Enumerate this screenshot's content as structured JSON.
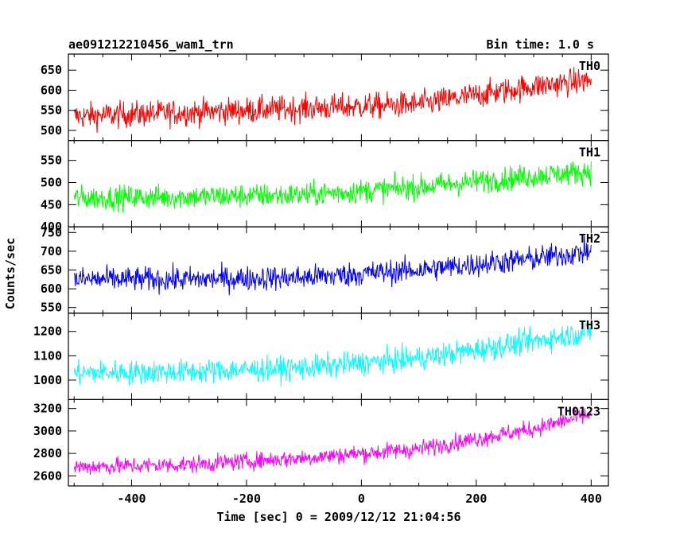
{
  "header": {
    "left_title": "ae091212210456_wam1_trn",
    "right_title": "Bin time: 1.0 s"
  },
  "ylabel": "Counts/sec",
  "xlabel": "Time [sec] 0 = 2009/12/12 21:04:56",
  "chart_data": {
    "type": "line",
    "title": "ae091212210456_wam1_trn",
    "subtitle": "Bin time: 1.0 s",
    "xlabel": "Time [sec] 0 = 2009/12/12 21:04:56",
    "ylabel": "Counts/sec",
    "xlim": [
      -510,
      430
    ],
    "x_ticks": [
      -400,
      -200,
      0,
      200,
      400
    ],
    "x_start": -500,
    "x_end": 400,
    "grid": false,
    "legend": "none",
    "panels": [
      {
        "name": "TH0",
        "color": "#ff0000",
        "ylim": [
          475,
          690
        ],
        "y_ticks": [
          500,
          550,
          600,
          650
        ],
        "trend_x": [
          -500,
          -300,
          -100,
          100,
          300,
          400
        ],
        "trend_y": [
          535,
          545,
          555,
          565,
          610,
          625
        ],
        "noise": 30
      },
      {
        "name": "TH1",
        "color": "#00ff00",
        "ylim": [
          400,
          595
        ],
        "y_ticks": [
          400,
          450,
          500,
          550
        ],
        "trend_x": [
          -500,
          -300,
          -100,
          100,
          300,
          400
        ],
        "trend_y": [
          465,
          468,
          472,
          490,
          515,
          525
        ],
        "noise": 25
      },
      {
        "name": "TH2",
        "color": "#0000ff",
        "ylim": [
          535,
          765
        ],
        "y_ticks": [
          550,
          600,
          650,
          700,
          750
        ],
        "trend_x": [
          -500,
          -300,
          -100,
          100,
          300,
          400
        ],
        "trend_y": [
          625,
          625,
          630,
          650,
          680,
          700
        ],
        "noise": 30
      },
      {
        "name": "TH3",
        "color": "#00ffff",
        "ylim": [
          920,
          1275
        ],
        "y_ticks": [
          1000,
          1100,
          1200
        ],
        "trend_x": [
          -500,
          -300,
          -100,
          100,
          300,
          400
        ],
        "trend_y": [
          1030,
          1035,
          1050,
          1090,
          1160,
          1200
        ],
        "noise": 45
      },
      {
        "name": "TH0123",
        "color": "#ff00ff",
        "ylim": [
          2510,
          3280
        ],
        "y_ticks": [
          2600,
          2800,
          3000,
          3200
        ],
        "trend_x": [
          -500,
          -300,
          -100,
          100,
          300,
          400
        ],
        "trend_y": [
          2680,
          2700,
          2760,
          2840,
          3020,
          3150
        ],
        "noise": 70
      }
    ]
  }
}
